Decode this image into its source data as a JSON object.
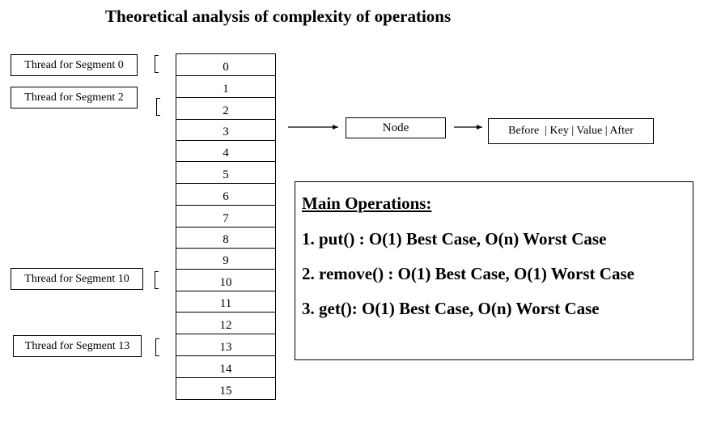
{
  "title": "Theoretical analysis of complexity of operations",
  "threads": [
    {
      "label": "Thread for Segment 0"
    },
    {
      "label": "Thread for Segment 2"
    },
    {
      "label": "Thread for Segment 10"
    },
    {
      "label": "Thread for Segment 13"
    }
  ],
  "segments": [
    "0",
    "1",
    "2",
    "3",
    "4",
    "5",
    "6",
    "7",
    "8",
    "9",
    "10",
    "11",
    "12",
    "13",
    "14",
    "15"
  ],
  "node": {
    "label": "Node"
  },
  "entry": {
    "label": "Before  | Key | Value | After"
  },
  "operations": {
    "heading": "Main Operations:",
    "items": [
      "1. put() : O(1) Best Case, O(n) Worst Case",
      "2. remove() : O(1) Best Case, O(1) Worst Case",
      "3. get(): O(1) Best Case, O(n) Worst Case"
    ]
  }
}
